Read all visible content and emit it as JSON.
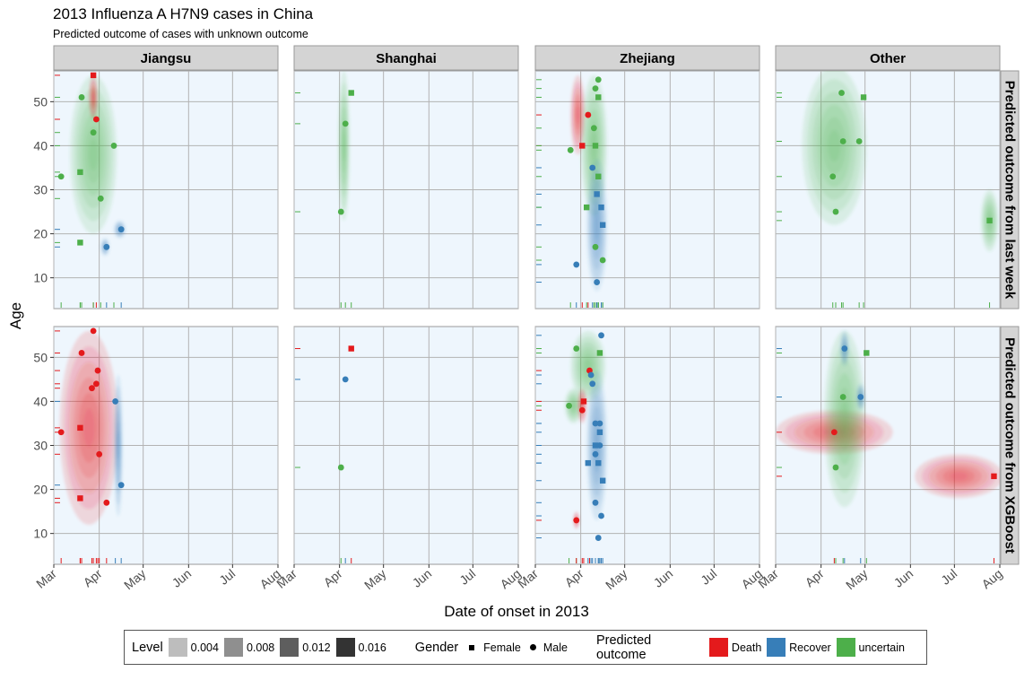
{
  "title": "2013 Influenza A H7N9 cases in China",
  "subtitle": "Predicted outcome of cases with unknown outcome",
  "xlabel": "Date of onset in 2013",
  "ylabel": "Age",
  "legend": {
    "level_title": "Level",
    "levels": [
      {
        "label": "0.004",
        "color": "#bdbdbd"
      },
      {
        "label": "0.008",
        "color": "#8f8f8f"
      },
      {
        "label": "0.012",
        "color": "#5e5e5e"
      },
      {
        "label": "0.016",
        "color": "#333333"
      }
    ],
    "gender_title": "Gender",
    "genders": [
      {
        "label": "Female",
        "shape": "square"
      },
      {
        "label": "Male",
        "shape": "circle"
      }
    ],
    "outcome_title": "Predicted outcome",
    "outcomes": [
      {
        "label": "Death",
        "color": "#e41a1c"
      },
      {
        "label": "Recover",
        "color": "#377eb8"
      },
      {
        "label": "uncertain",
        "color": "#4daf4a"
      }
    ]
  },
  "chart_data": {
    "type": "scatter",
    "facet_columns": [
      "Jiangsu",
      "Shanghai",
      "Zhejiang",
      "Other"
    ],
    "facet_rows": [
      "Predicted outcome from last week",
      "Predicted outcome from XGBoost"
    ],
    "x_ticks": [
      "Mar",
      "Apr",
      "May",
      "Jun",
      "Jul",
      "Aug"
    ],
    "y_ticks": [
      10,
      20,
      30,
      40,
      50
    ],
    "xlim_days": [
      0,
      153
    ],
    "ylim": [
      3,
      57
    ],
    "colors": {
      "Death": "#e41a1c",
      "Recover": "#377eb8",
      "uncertain": "#4daf4a"
    },
    "panels": [
      {
        "row": 0,
        "col": 0,
        "densities": [
          {
            "outcome": "uncertain",
            "cx": 27,
            "cy": 38,
            "rx": 16,
            "ry": 18
          },
          {
            "outcome": "Death",
            "cx": 27,
            "cy": 51,
            "rx": 3,
            "ry": 5
          },
          {
            "outcome": "Recover",
            "cx": 45,
            "cy": 21,
            "rx": 4,
            "ry": 2
          },
          {
            "outcome": "Recover",
            "cx": 35,
            "cy": 17,
            "rx": 3,
            "ry": 2
          }
        ],
        "points": [
          {
            "x": 27,
            "y": 56,
            "o": "Death",
            "g": "F"
          },
          {
            "x": 29,
            "y": 46,
            "o": "Death",
            "g": "M"
          },
          {
            "x": 19,
            "y": 51,
            "o": "uncertain",
            "g": "M"
          },
          {
            "x": 27,
            "y": 43,
            "o": "uncertain",
            "g": "M"
          },
          {
            "x": 41,
            "y": 40,
            "o": "uncertain",
            "g": "M"
          },
          {
            "x": 18,
            "y": 34,
            "o": "uncertain",
            "g": "F"
          },
          {
            "x": 5,
            "y": 33,
            "o": "uncertain",
            "g": "M"
          },
          {
            "x": 32,
            "y": 28,
            "o": "uncertain",
            "g": "M"
          },
          {
            "x": 18,
            "y": 18,
            "o": "uncertain",
            "g": "F"
          },
          {
            "x": 46,
            "y": 21,
            "o": "Recover",
            "g": "M"
          },
          {
            "x": 36,
            "y": 17,
            "o": "Recover",
            "g": "M"
          }
        ]
      },
      {
        "row": 0,
        "col": 1,
        "densities": [
          {
            "outcome": "uncertain",
            "cx": 34,
            "cy": 40,
            "rx": 4,
            "ry": 17
          }
        ],
        "points": [
          {
            "x": 39,
            "y": 52,
            "o": "uncertain",
            "g": "F"
          },
          {
            "x": 35,
            "y": 45,
            "o": "uncertain",
            "g": "M"
          },
          {
            "x": 32,
            "y": 25,
            "o": "uncertain",
            "g": "M"
          }
        ]
      },
      {
        "row": 0,
        "col": 2,
        "densities": [
          {
            "outcome": "Death",
            "cx": 29,
            "cy": 47,
            "rx": 5,
            "ry": 9
          },
          {
            "outcome": "uncertain",
            "cx": 40,
            "cy": 40,
            "rx": 9,
            "ry": 16
          },
          {
            "outcome": "Recover",
            "cx": 42,
            "cy": 22,
            "rx": 7,
            "ry": 15
          }
        ],
        "points": [
          {
            "x": 43,
            "y": 55,
            "o": "uncertain",
            "g": "M"
          },
          {
            "x": 41,
            "y": 53,
            "o": "uncertain",
            "g": "M"
          },
          {
            "x": 43,
            "y": 51,
            "o": "uncertain",
            "g": "F"
          },
          {
            "x": 36,
            "y": 47,
            "o": "Death",
            "g": "M"
          },
          {
            "x": 40,
            "y": 44,
            "o": "uncertain",
            "g": "M"
          },
          {
            "x": 32,
            "y": 40,
            "o": "Death",
            "g": "F"
          },
          {
            "x": 41,
            "y": 40,
            "o": "uncertain",
            "g": "F"
          },
          {
            "x": 24,
            "y": 39,
            "o": "uncertain",
            "g": "M"
          },
          {
            "x": 39,
            "y": 35,
            "o": "Recover",
            "g": "M"
          },
          {
            "x": 43,
            "y": 33,
            "o": "uncertain",
            "g": "F"
          },
          {
            "x": 42,
            "y": 29,
            "o": "Recover",
            "g": "F"
          },
          {
            "x": 45,
            "y": 26,
            "o": "Recover",
            "g": "F"
          },
          {
            "x": 35,
            "y": 26,
            "o": "uncertain",
            "g": "F"
          },
          {
            "x": 46,
            "y": 22,
            "o": "Recover",
            "g": "F"
          },
          {
            "x": 41,
            "y": 17,
            "o": "uncertain",
            "g": "M"
          },
          {
            "x": 46,
            "y": 14,
            "o": "uncertain",
            "g": "M"
          },
          {
            "x": 28,
            "y": 13,
            "o": "Recover",
            "g": "M"
          },
          {
            "x": 42,
            "y": 9,
            "o": "Recover",
            "g": "M"
          }
        ]
      },
      {
        "row": 0,
        "col": 3,
        "densities": [
          {
            "outcome": "uncertain",
            "cx": 40,
            "cy": 40,
            "rx": 22,
            "ry": 18
          },
          {
            "outcome": "uncertain",
            "cx": 146,
            "cy": 23,
            "rx": 6,
            "ry": 7
          }
        ],
        "points": [
          {
            "x": 45,
            "y": 52,
            "o": "uncertain",
            "g": "M"
          },
          {
            "x": 60,
            "y": 51,
            "o": "uncertain",
            "g": "F"
          },
          {
            "x": 46,
            "y": 41,
            "o": "uncertain",
            "g": "M"
          },
          {
            "x": 57,
            "y": 41,
            "o": "uncertain",
            "g": "M"
          },
          {
            "x": 39,
            "y": 33,
            "o": "uncertain",
            "g": "M"
          },
          {
            "x": 41,
            "y": 25,
            "o": "uncertain",
            "g": "M"
          },
          {
            "x": 146,
            "y": 23,
            "o": "uncertain",
            "g": "F"
          }
        ]
      },
      {
        "row": 1,
        "col": 0,
        "densities": [
          {
            "outcome": "Death",
            "cx": 24,
            "cy": 34,
            "rx": 20,
            "ry": 22
          },
          {
            "outcome": "Recover",
            "cx": 44,
            "cy": 30,
            "rx": 3,
            "ry": 16
          }
        ],
        "points": [
          {
            "x": 27,
            "y": 56,
            "o": "Death",
            "g": "M"
          },
          {
            "x": 19,
            "y": 51,
            "o": "Death",
            "g": "M"
          },
          {
            "x": 30,
            "y": 47,
            "o": "Death",
            "g": "M"
          },
          {
            "x": 29,
            "y": 44,
            "o": "Death",
            "g": "M"
          },
          {
            "x": 26,
            "y": 43,
            "o": "Death",
            "g": "M"
          },
          {
            "x": 42,
            "y": 40,
            "o": "Recover",
            "g": "M"
          },
          {
            "x": 18,
            "y": 34,
            "o": "Death",
            "g": "F"
          },
          {
            "x": 5,
            "y": 33,
            "o": "Death",
            "g": "M"
          },
          {
            "x": 31,
            "y": 28,
            "o": "Death",
            "g": "M"
          },
          {
            "x": 46,
            "y": 21,
            "o": "Recover",
            "g": "M"
          },
          {
            "x": 18,
            "y": 18,
            "o": "Death",
            "g": "F"
          },
          {
            "x": 36,
            "y": 17,
            "o": "Death",
            "g": "M"
          }
        ]
      },
      {
        "row": 1,
        "col": 1,
        "densities": [],
        "points": [
          {
            "x": 39,
            "y": 52,
            "o": "Death",
            "g": "F"
          },
          {
            "x": 35,
            "y": 45,
            "o": "Recover",
            "g": "M"
          },
          {
            "x": 32,
            "y": 25,
            "o": "uncertain",
            "g": "M"
          }
        ]
      },
      {
        "row": 1,
        "col": 2,
        "densities": [
          {
            "outcome": "uncertain",
            "cx": 36,
            "cy": 48,
            "rx": 12,
            "ry": 8
          },
          {
            "outcome": "uncertain",
            "cx": 26,
            "cy": 39,
            "rx": 6,
            "ry": 4
          },
          {
            "outcome": "Death",
            "cx": 32,
            "cy": 39,
            "rx": 3,
            "ry": 4
          },
          {
            "outcome": "Death",
            "cx": 28,
            "cy": 13,
            "rx": 2,
            "ry": 2
          },
          {
            "outcome": "Recover",
            "cx": 42,
            "cy": 30,
            "rx": 7,
            "ry": 17
          }
        ],
        "points": [
          {
            "x": 45,
            "y": 55,
            "o": "Recover",
            "g": "M"
          },
          {
            "x": 28,
            "y": 52,
            "o": "uncertain",
            "g": "M"
          },
          {
            "x": 44,
            "y": 51,
            "o": "uncertain",
            "g": "F"
          },
          {
            "x": 37,
            "y": 47,
            "o": "Death",
            "g": "M"
          },
          {
            "x": 38,
            "y": 46,
            "o": "Recover",
            "g": "M"
          },
          {
            "x": 39,
            "y": 44,
            "o": "Recover",
            "g": "M"
          },
          {
            "x": 33,
            "y": 40,
            "o": "Death",
            "g": "F"
          },
          {
            "x": 23,
            "y": 39,
            "o": "uncertain",
            "g": "M"
          },
          {
            "x": 32,
            "y": 38,
            "o": "Death",
            "g": "M"
          },
          {
            "x": 41,
            "y": 35,
            "o": "Recover",
            "g": "M"
          },
          {
            "x": 44,
            "y": 35,
            "o": "Recover",
            "g": "M"
          },
          {
            "x": 44,
            "y": 33,
            "o": "Recover",
            "g": "F"
          },
          {
            "x": 41,
            "y": 30,
            "o": "Recover",
            "g": "F"
          },
          {
            "x": 44,
            "y": 30,
            "o": "Recover",
            "g": "M"
          },
          {
            "x": 41,
            "y": 28,
            "o": "Recover",
            "g": "M"
          },
          {
            "x": 36,
            "y": 26,
            "o": "Recover",
            "g": "F"
          },
          {
            "x": 43,
            "y": 26,
            "o": "Recover",
            "g": "F"
          },
          {
            "x": 46,
            "y": 22,
            "o": "Recover",
            "g": "F"
          },
          {
            "x": 41,
            "y": 17,
            "o": "Recover",
            "g": "M"
          },
          {
            "x": 45,
            "y": 14,
            "o": "Recover",
            "g": "M"
          },
          {
            "x": 28,
            "y": 13,
            "o": "Death",
            "g": "M"
          },
          {
            "x": 43,
            "y": 9,
            "o": "Recover",
            "g": "M"
          }
        ]
      },
      {
        "row": 1,
        "col": 3,
        "densities": [
          {
            "outcome": "Death",
            "cx": 40,
            "cy": 33,
            "rx": 40,
            "ry": 5
          },
          {
            "outcome": "Death",
            "cx": 125,
            "cy": 23,
            "rx": 30,
            "ry": 5
          },
          {
            "outcome": "uncertain",
            "cx": 47,
            "cy": 36,
            "rx": 14,
            "ry": 20
          },
          {
            "outcome": "Recover",
            "cx": 47,
            "cy": 52,
            "rx": 3,
            "ry": 4
          },
          {
            "outcome": "Recover",
            "cx": 58,
            "cy": 41,
            "rx": 3,
            "ry": 3
          }
        ],
        "points": [
          {
            "x": 47,
            "y": 52,
            "o": "Recover",
            "g": "M"
          },
          {
            "x": 62,
            "y": 51,
            "o": "uncertain",
            "g": "F"
          },
          {
            "x": 46,
            "y": 41,
            "o": "uncertain",
            "g": "M"
          },
          {
            "x": 58,
            "y": 41,
            "o": "Recover",
            "g": "M"
          },
          {
            "x": 40,
            "y": 33,
            "o": "Death",
            "g": "M"
          },
          {
            "x": 41,
            "y": 25,
            "o": "uncertain",
            "g": "M"
          },
          {
            "x": 149,
            "y": 23,
            "o": "Death",
            "g": "F"
          }
        ]
      }
    ]
  }
}
